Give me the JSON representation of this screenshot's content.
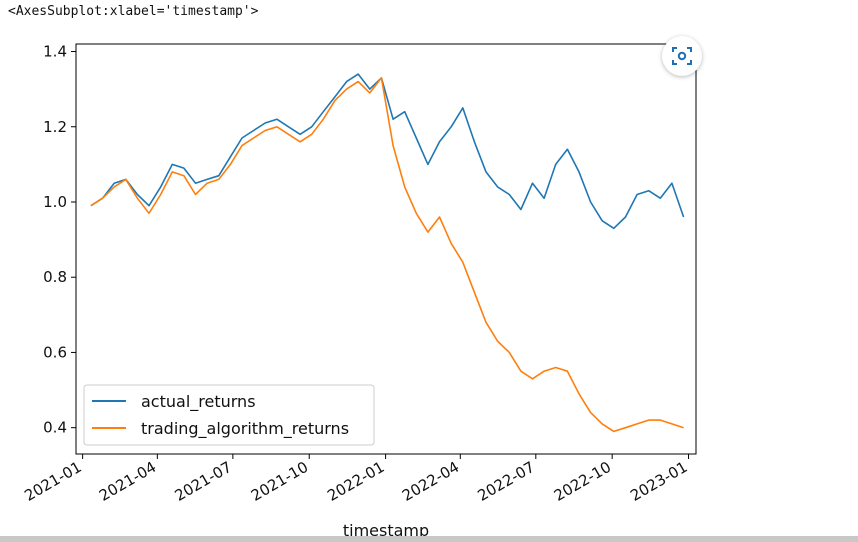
{
  "output_repr": "<AxesSubplot:xlabel='timestamp'>",
  "colors": {
    "actual": "#1f77b4",
    "algorithm": "#ff7f0e",
    "camera_icon": "#1f6fb2"
  },
  "icons": {
    "camera": "camera-scan-icon"
  },
  "chart_data": {
    "type": "line",
    "xlabel": "timestamp",
    "ylabel": "",
    "x_ticks": [
      "2021-01",
      "2021-04",
      "2021-07",
      "2021-10",
      "2022-01",
      "2022-04",
      "2022-07",
      "2022-10",
      "2023-01"
    ],
    "y_ticks": [
      0.4,
      0.6,
      0.8,
      1.0,
      1.2,
      1.4
    ],
    "y_tick_labels": [
      "0.4",
      "0.6",
      "0.8",
      "1.0",
      "1.2",
      "1.4"
    ],
    "xlim": [
      "2020-12-24",
      "2023-01-10"
    ],
    "ylim": [
      0.33,
      1.42
    ],
    "grid": false,
    "legend_position": "lower-left",
    "x": [
      "2021-01-11",
      "2021-01-25",
      "2021-02-08",
      "2021-02-22",
      "2021-03-08",
      "2021-03-22",
      "2021-04-05",
      "2021-04-19",
      "2021-05-03",
      "2021-05-17",
      "2021-05-31",
      "2021-06-14",
      "2021-06-28",
      "2021-07-12",
      "2021-07-26",
      "2021-08-09",
      "2021-08-23",
      "2021-09-06",
      "2021-09-20",
      "2021-10-04",
      "2021-10-18",
      "2021-11-01",
      "2021-11-15",
      "2021-11-29",
      "2021-12-13",
      "2021-12-27",
      "2022-01-10",
      "2022-01-24",
      "2022-02-07",
      "2022-02-21",
      "2022-03-07",
      "2022-03-21",
      "2022-04-04",
      "2022-04-18",
      "2022-05-02",
      "2022-05-16",
      "2022-05-30",
      "2022-06-13",
      "2022-06-27",
      "2022-07-11",
      "2022-07-25",
      "2022-08-08",
      "2022-08-22",
      "2022-09-05",
      "2022-09-19",
      "2022-10-03",
      "2022-10-17",
      "2022-10-31",
      "2022-11-14",
      "2022-11-28",
      "2022-12-12",
      "2022-12-26"
    ],
    "series": [
      {
        "name": "actual_returns",
        "values": [
          0.99,
          1.01,
          1.05,
          1.06,
          1.02,
          0.99,
          1.04,
          1.1,
          1.09,
          1.05,
          1.06,
          1.07,
          1.12,
          1.17,
          1.19,
          1.21,
          1.22,
          1.2,
          1.18,
          1.2,
          1.24,
          1.28,
          1.32,
          1.34,
          1.3,
          1.33,
          1.22,
          1.24,
          1.17,
          1.1,
          1.16,
          1.2,
          1.25,
          1.16,
          1.08,
          1.04,
          1.02,
          0.98,
          1.05,
          1.01,
          1.1,
          1.14,
          1.08,
          1.0,
          0.95,
          0.93,
          0.96,
          1.02,
          1.03,
          1.01,
          1.05,
          0.96
        ]
      },
      {
        "name": "trading_algorithm_returns",
        "values": [
          0.99,
          1.01,
          1.04,
          1.06,
          1.01,
          0.97,
          1.02,
          1.08,
          1.07,
          1.02,
          1.05,
          1.06,
          1.1,
          1.15,
          1.17,
          1.19,
          1.2,
          1.18,
          1.16,
          1.18,
          1.22,
          1.27,
          1.3,
          1.32,
          1.29,
          1.33,
          1.15,
          1.04,
          0.97,
          0.92,
          0.96,
          0.89,
          0.84,
          0.76,
          0.68,
          0.63,
          0.6,
          0.55,
          0.53,
          0.55,
          0.56,
          0.55,
          0.49,
          0.44,
          0.41,
          0.39,
          0.4,
          0.41,
          0.42,
          0.42,
          0.41,
          0.4
        ]
      }
    ]
  }
}
